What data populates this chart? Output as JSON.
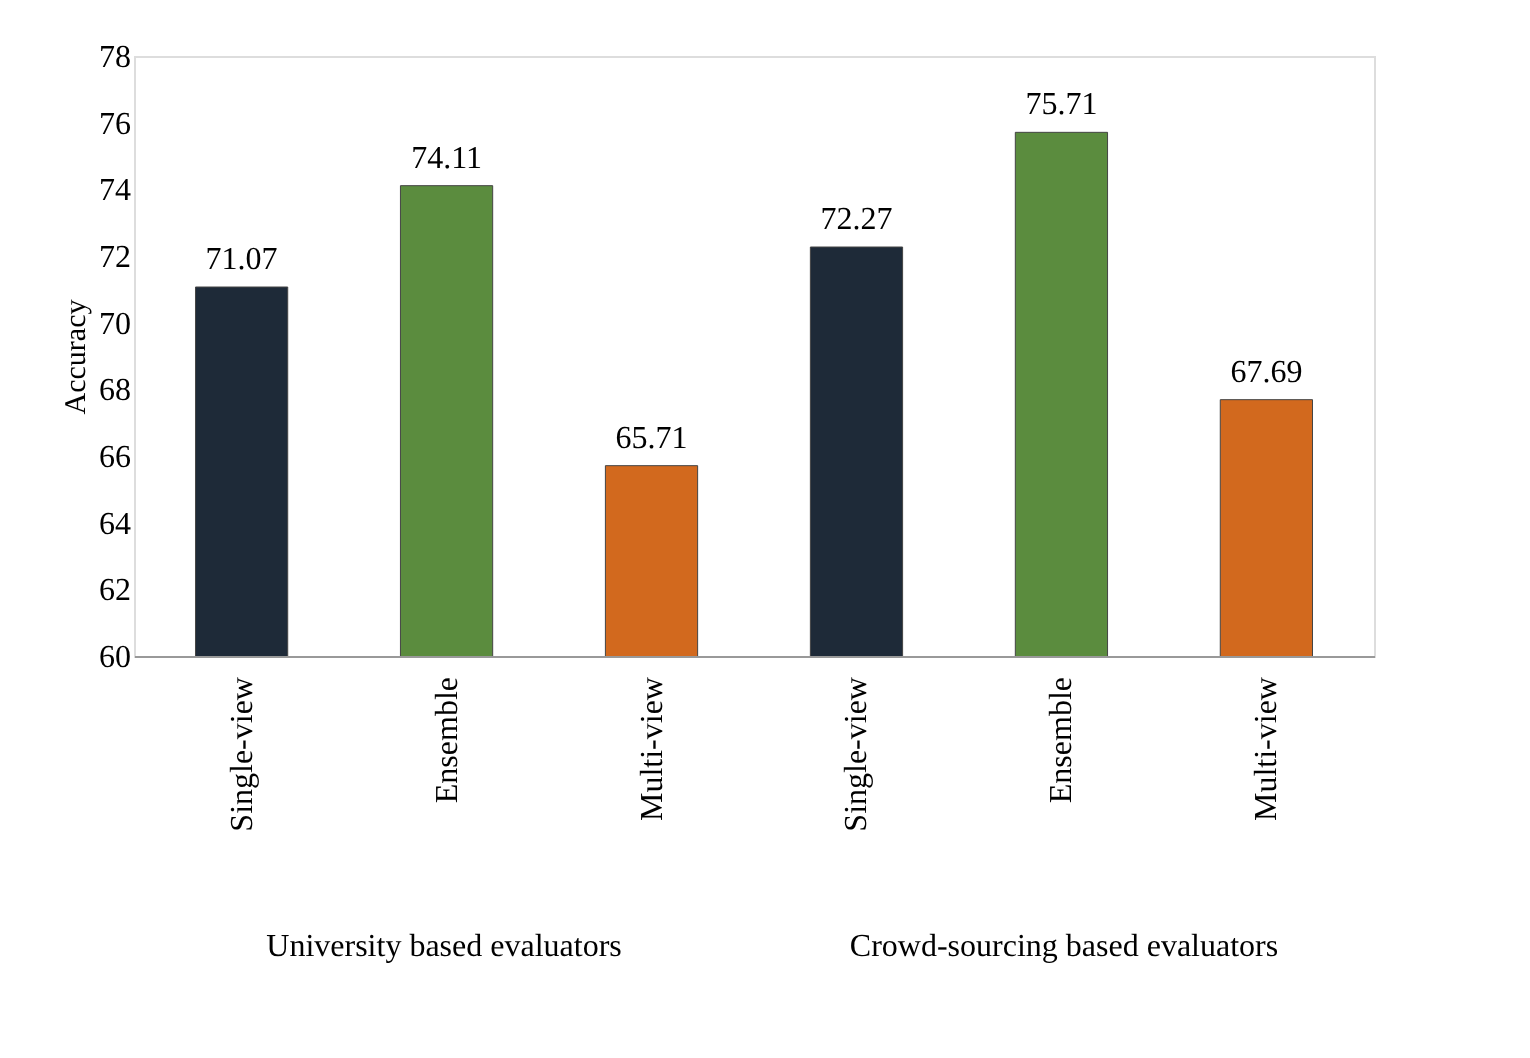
{
  "chart_data": {
    "type": "bar",
    "ylabel": "Accuracy",
    "categories": [
      "Single-view",
      "Ensemble",
      "Multi-view",
      "Single-view",
      "Ensemble",
      "Multi-view"
    ],
    "values": [
      71.07,
      74.11,
      65.71,
      72.27,
      75.71,
      67.69
    ],
    "colors": [
      "#1e2a38",
      "#5b8c3e",
      "#d2691e",
      "#1e2a38",
      "#5b8c3e",
      "#d2691e"
    ],
    "ylim": [
      60,
      78
    ],
    "yticks": [
      60,
      62,
      64,
      66,
      68,
      70,
      72,
      74,
      76,
      78
    ],
    "data_labels": true,
    "grid": false,
    "annotations": [
      "University based evaluators",
      "Crowd-sourcing based evaluators"
    ]
  }
}
